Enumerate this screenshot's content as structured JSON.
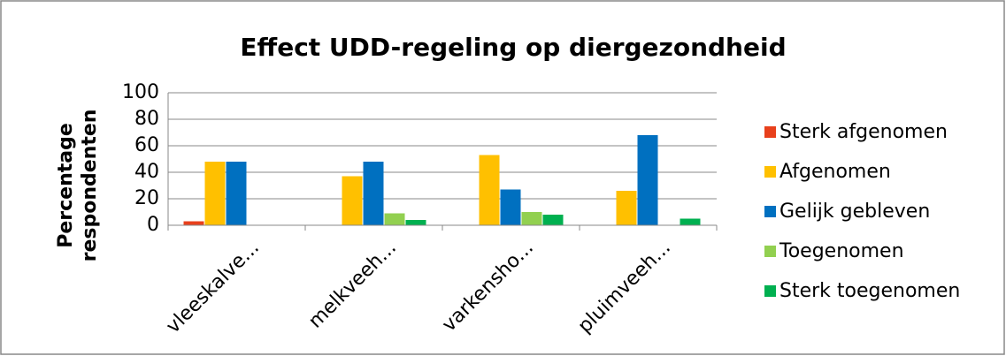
{
  "chart_data": {
    "type": "bar",
    "title": "Effect UDD-regeling op diergezondheid",
    "ylabel": [
      "Percentage",
      "respondenten"
    ],
    "categories": [
      "vleeskalve...",
      "melkveeh...",
      "varkensho...",
      "pluimveeh..."
    ],
    "series": [
      {
        "name": "Sterk afgenomen",
        "color": "#e8401c",
        "values": [
          3,
          0,
          0,
          0
        ]
      },
      {
        "name": "Afgenomen",
        "color": "#ffc000",
        "values": [
          48,
          37,
          53,
          26
        ]
      },
      {
        "name": "Gelijk gebleven",
        "color": "#0070c0",
        "values": [
          48,
          48,
          27,
          68
        ]
      },
      {
        "name": "Toegenomen",
        "color": "#92d050",
        "values": [
          0,
          9,
          10,
          0
        ]
      },
      {
        "name": "Sterk toegenomen",
        "color": "#00b050",
        "values": [
          0,
          4,
          8,
          5
        ]
      }
    ],
    "ylim": [
      0,
      100
    ],
    "yticks": [
      0,
      20,
      40,
      60,
      80,
      100
    ],
    "grid": true,
    "legend": "right"
  }
}
